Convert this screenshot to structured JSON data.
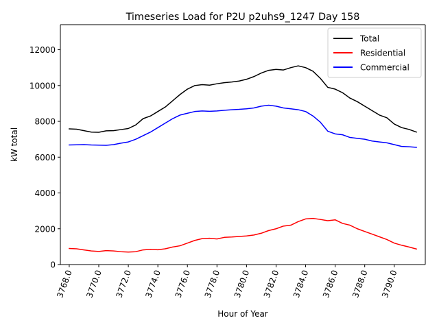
{
  "chart_data": {
    "type": "line",
    "title": "Timeseries Load for P2U p2uhs9_1247  Day 158",
    "xlabel": "Hour of Year",
    "ylabel": "kW total",
    "xlim": [
      3767.4,
      3792.1
    ],
    "ylim": [
      0,
      13400
    ],
    "x_ticks": [
      3768,
      3770,
      3772,
      3774,
      3776,
      3778,
      3780,
      3782,
      3784,
      3786,
      3788,
      3790
    ],
    "x_tick_labels": [
      "3768.0",
      "3770.0",
      "3772.0",
      "3774.0",
      "3776.0",
      "3778.0",
      "3780.0",
      "3782.0",
      "3784.0",
      "3786.0",
      "3788.0",
      "3790.0"
    ],
    "y_ticks": [
      0,
      2000,
      4000,
      6000,
      8000,
      10000,
      12000
    ],
    "y_tick_labels": [
      "0",
      "2000",
      "4000",
      "6000",
      "8000",
      "10000",
      "12000"
    ],
    "legend_position": "top-right",
    "x": [
      3768,
      3768.5,
      3769,
      3769.5,
      3770,
      3770.5,
      3771,
      3771.5,
      3772,
      3772.5,
      3773,
      3773.5,
      3774,
      3774.5,
      3775,
      3775.5,
      3776,
      3776.5,
      3777,
      3777.5,
      3778,
      3778.5,
      3779,
      3779.5,
      3780,
      3780.5,
      3781,
      3781.5,
      3782,
      3782.5,
      3783,
      3783.5,
      3784,
      3784.5,
      3785,
      3785.5,
      3786,
      3786.5,
      3787,
      3787.5,
      3788,
      3788.5,
      3789,
      3789.5,
      3790,
      3790.5,
      3791,
      3791.5
    ],
    "series": [
      {
        "name": "Total",
        "color": "#000000",
        "values": [
          7580,
          7560,
          7480,
          7400,
          7390,
          7470,
          7480,
          7540,
          7600,
          7800,
          8150,
          8300,
          8550,
          8800,
          9150,
          9500,
          9800,
          10000,
          10050,
          10020,
          10100,
          10160,
          10200,
          10250,
          10350,
          10500,
          10700,
          10850,
          10900,
          10870,
          11000,
          11100,
          11000,
          10800,
          10400,
          9900,
          9800,
          9600,
          9300,
          9100,
          8850,
          8600,
          8350,
          8200,
          7850,
          7650,
          7550,
          7400
        ]
      },
      {
        "name": "Residential",
        "color": "#ff0000",
        "values": [
          900,
          880,
          820,
          760,
          730,
          780,
          760,
          720,
          700,
          720,
          820,
          850,
          830,
          880,
          980,
          1050,
          1200,
          1350,
          1450,
          1470,
          1430,
          1520,
          1540,
          1570,
          1600,
          1650,
          1750,
          1900,
          2000,
          2150,
          2200,
          2400,
          2550,
          2580,
          2520,
          2450,
          2500,
          2300,
          2200,
          2000,
          1850,
          1700,
          1550,
          1400,
          1200,
          1080,
          980,
          870
        ]
      },
      {
        "name": "Commercial",
        "color": "#0000ff",
        "values": [
          6680,
          6690,
          6700,
          6680,
          6670,
          6660,
          6700,
          6780,
          6850,
          7000,
          7200,
          7400,
          7650,
          7900,
          8150,
          8350,
          8450,
          8550,
          8580,
          8560,
          8580,
          8620,
          8650,
          8670,
          8700,
          8750,
          8850,
          8900,
          8850,
          8750,
          8700,
          8650,
          8550,
          8300,
          7950,
          7450,
          7300,
          7250,
          7100,
          7050,
          7000,
          6900,
          6850,
          6800,
          6700,
          6600,
          6580,
          6550
        ]
      }
    ]
  }
}
